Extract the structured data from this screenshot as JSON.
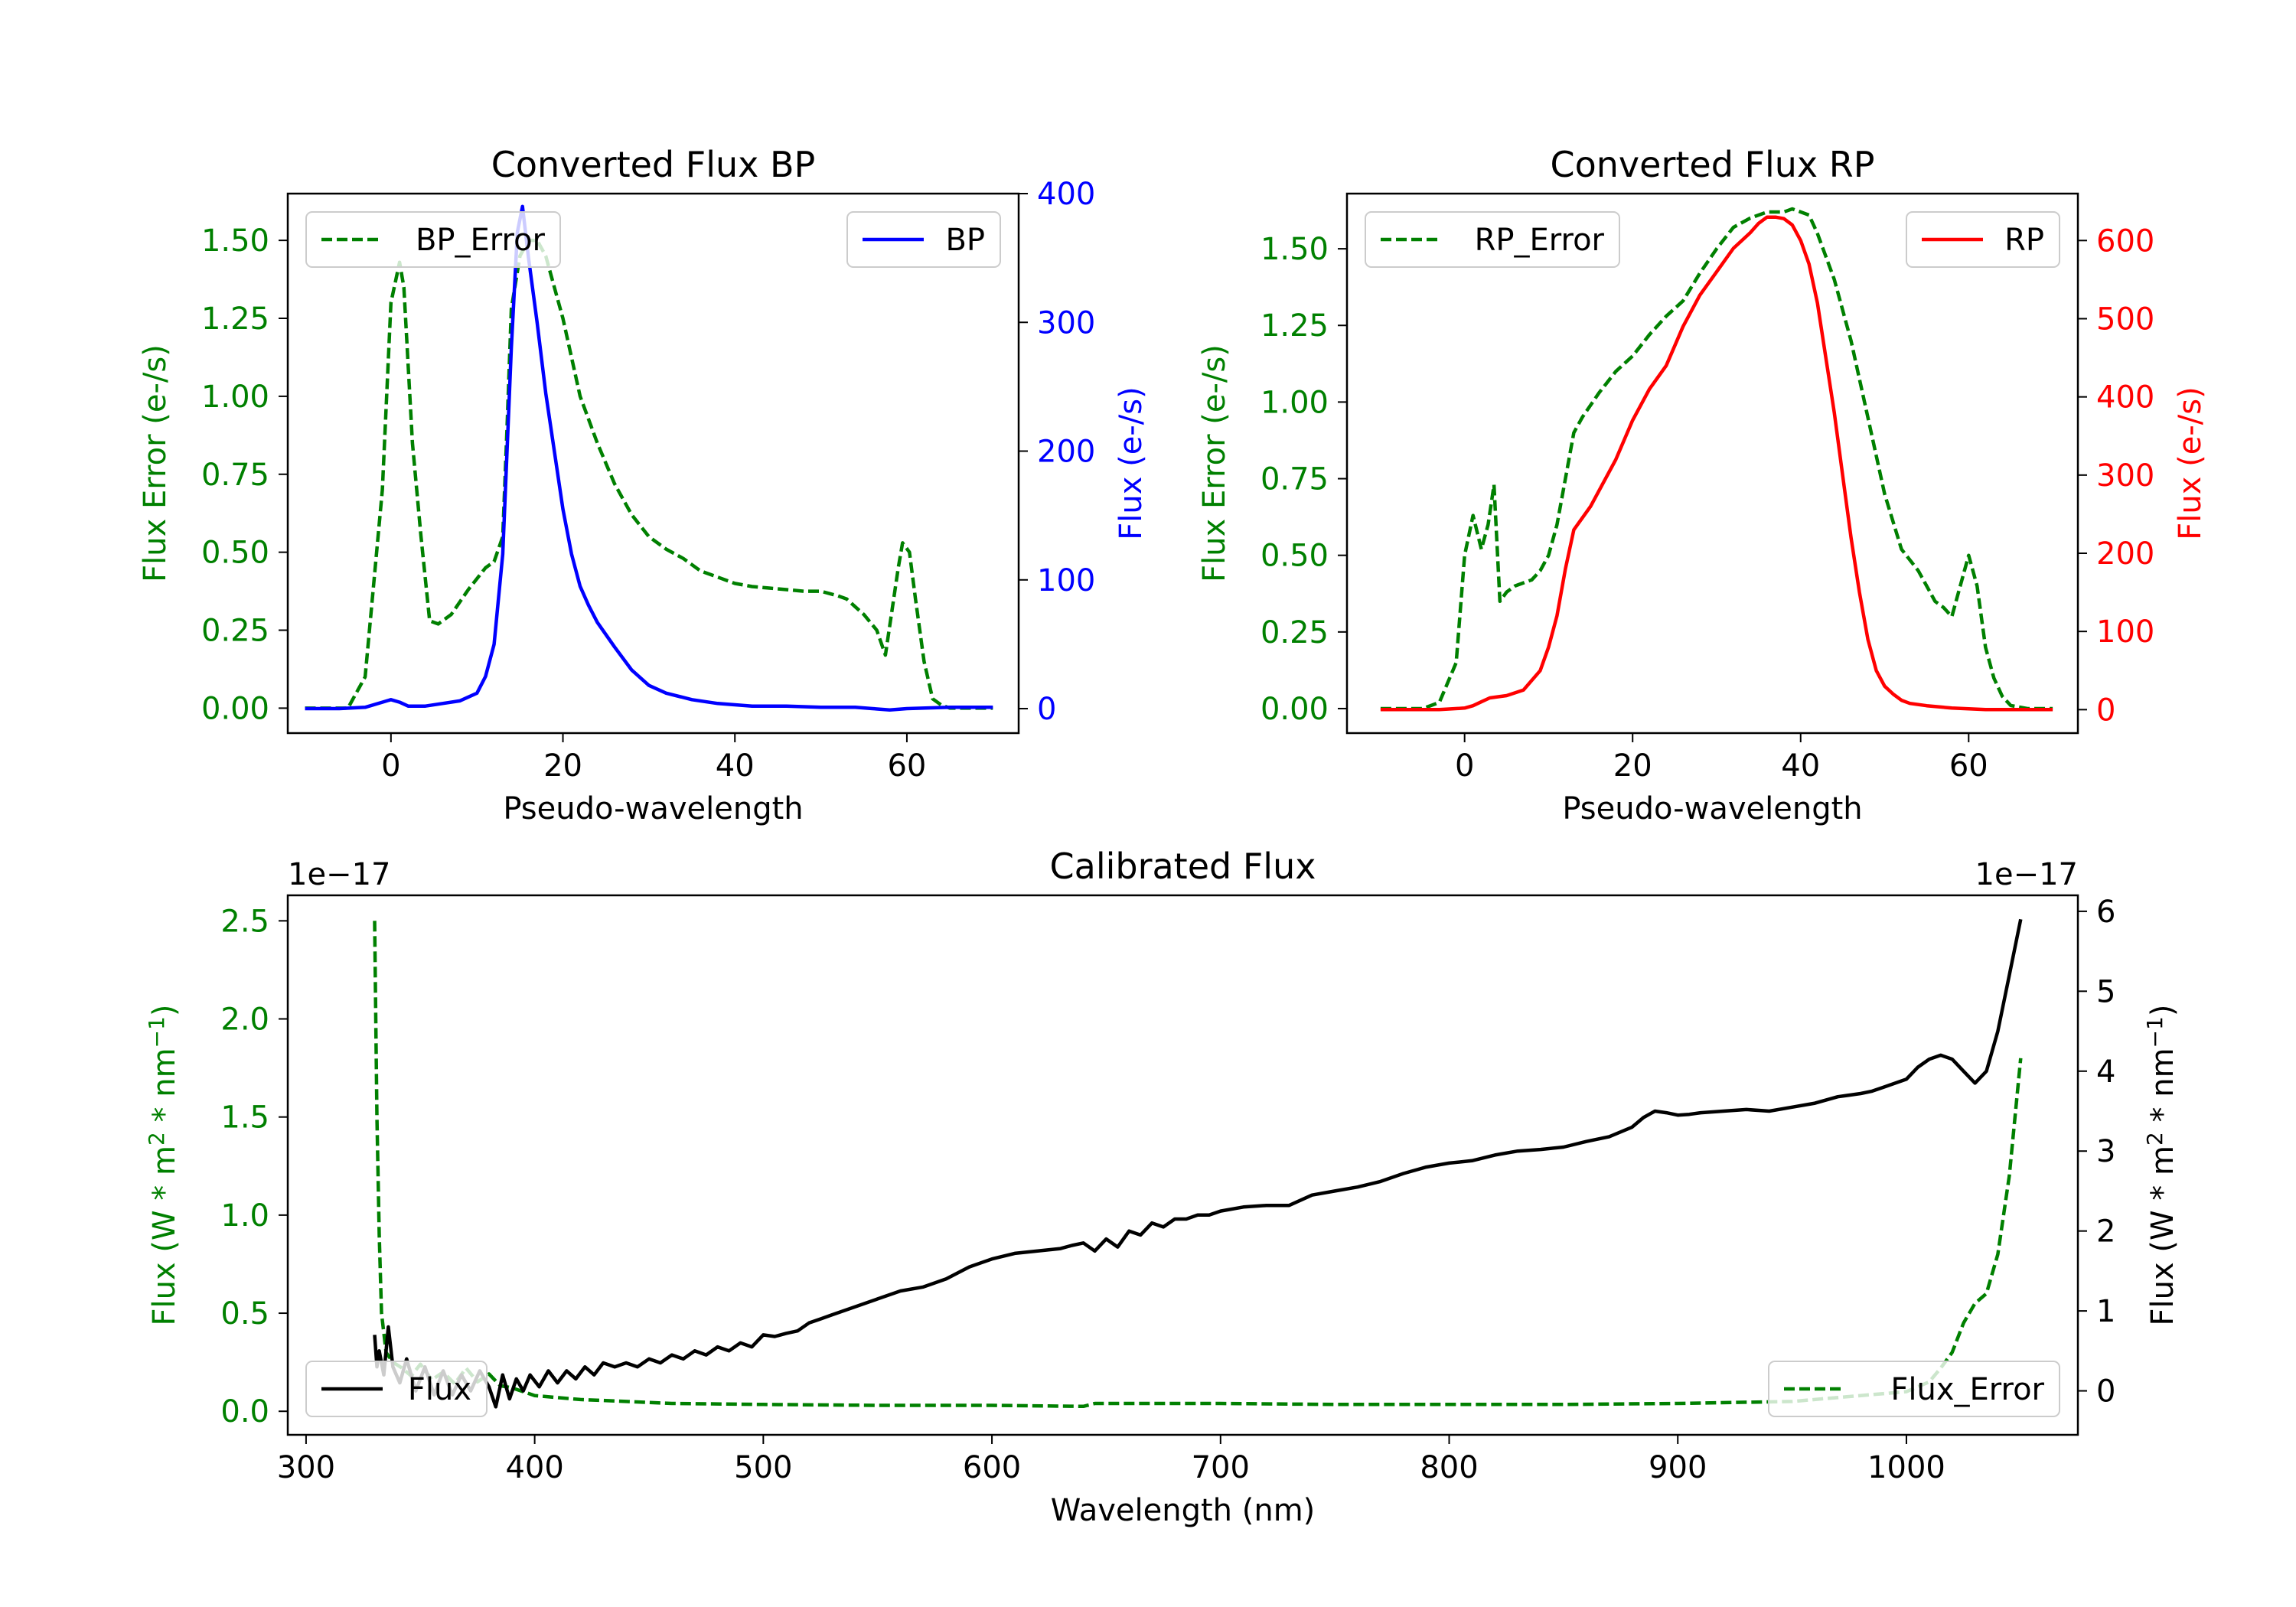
{
  "colors": {
    "error": "#008000",
    "bp": "#0000ff",
    "rp": "#ff0000",
    "flux": "#000000",
    "axis": "#000000"
  },
  "chart_data": [
    {
      "type": "line",
      "title": "Converted Flux BP",
      "xlabel": "Pseudo-wavelength",
      "xlim": [
        -12,
        73
      ],
      "xticks": [
        0,
        20,
        40,
        60
      ],
      "left_axis": {
        "label": "Flux Error (e-/s)",
        "lim": [
          -0.08,
          1.65
        ],
        "ticks": [
          "0.00",
          "0.25",
          "0.50",
          "0.75",
          "1.00",
          "1.25",
          "1.50"
        ]
      },
      "right_axis": {
        "label": "Flux (e-/s)",
        "lim": [
          -19,
          400
        ],
        "ticks": [
          "0",
          "100",
          "200",
          "300",
          "400"
        ]
      },
      "legend_left": "BP_Error",
      "legend_right": "BP",
      "series": [
        {
          "name": "BP_Error",
          "axis": "left",
          "style": "dashed",
          "x": [
            -10,
            -5,
            -3,
            -1,
            0,
            1,
            1.5,
            2.5,
            3.5,
            4.5,
            5.5,
            7,
            9,
            11,
            12,
            13,
            13.5,
            14,
            15,
            16,
            17,
            18,
            19,
            20,
            22,
            24,
            26,
            28,
            30,
            32,
            34,
            36,
            38,
            40,
            42,
            44,
            46,
            48,
            50,
            52,
            53,
            55,
            56.5,
            57.5,
            59,
            59.5,
            60.3,
            61,
            62,
            63,
            64,
            65,
            67,
            70
          ],
          "y": [
            0.0,
            0.0,
            0.1,
            0.7,
            1.3,
            1.43,
            1.35,
            0.85,
            0.55,
            0.28,
            0.27,
            0.3,
            0.38,
            0.45,
            0.47,
            0.55,
            0.9,
            1.28,
            1.45,
            1.5,
            1.5,
            1.45,
            1.35,
            1.25,
            1.0,
            0.85,
            0.72,
            0.62,
            0.55,
            0.51,
            0.48,
            0.44,
            0.42,
            0.4,
            0.39,
            0.385,
            0.38,
            0.375,
            0.375,
            0.36,
            0.35,
            0.3,
            0.25,
            0.17,
            0.45,
            0.53,
            0.5,
            0.35,
            0.15,
            0.03,
            0.01,
            0.0,
            0.0,
            0.0
          ]
        },
        {
          "name": "BP",
          "axis": "right",
          "style": "solid",
          "x": [
            -10,
            -6,
            -3,
            -1,
            0,
            1,
            2,
            4,
            6,
            8,
            10,
            11,
            12,
            13,
            14,
            14.7,
            15.3,
            16,
            17,
            18,
            19,
            20,
            21,
            22,
            23,
            24,
            26,
            28,
            30,
            32,
            35,
            38,
            42,
            46,
            50,
            54,
            56,
            58,
            60,
            65,
            70
          ],
          "y": [
            0,
            0,
            1,
            5,
            7,
            5,
            2,
            2,
            4,
            6,
            12,
            25,
            50,
            120,
            280,
            370,
            390,
            350,
            300,
            245,
            200,
            155,
            120,
            95,
            80,
            67,
            48,
            30,
            18,
            12,
            7,
            4,
            2,
            2,
            1,
            1,
            0,
            -1,
            0,
            1,
            1
          ]
        }
      ]
    },
    {
      "type": "line",
      "title": "Converted Flux RP",
      "xlabel": "Pseudo-wavelength",
      "xlim": [
        -14,
        73
      ],
      "xticks": [
        0,
        20,
        40,
        60
      ],
      "left_axis": {
        "label": "Flux Error (e-/s)",
        "lim": [
          -0.08,
          1.68
        ],
        "ticks": [
          "0.00",
          "0.25",
          "0.50",
          "0.75",
          "1.00",
          "1.25",
          "1.50"
        ]
      },
      "right_axis": {
        "label": "Flux (e-/s)",
        "lim": [
          -30,
          660
        ],
        "ticks": [
          "0",
          "100",
          "200",
          "300",
          "400",
          "500",
          "600"
        ]
      },
      "legend_left": "RP_Error",
      "legend_right": "RP",
      "series": [
        {
          "name": "RP_Error",
          "axis": "left",
          "style": "dashed",
          "x": [
            -10,
            -5,
            -3,
            -1,
            0,
            1,
            2,
            2.8,
            3.5,
            4.2,
            5,
            6,
            8,
            9,
            10,
            11,
            12,
            13,
            14,
            16,
            18,
            20,
            22,
            24,
            26,
            28,
            30,
            32,
            34,
            36,
            38,
            39,
            41,
            42,
            44,
            46,
            48,
            50,
            52,
            54,
            55,
            56,
            57,
            58,
            59,
            60,
            61,
            62,
            63,
            64,
            65,
            67,
            70
          ],
          "y": [
            0.0,
            0.0,
            0.02,
            0.15,
            0.5,
            0.63,
            0.52,
            0.6,
            0.73,
            0.35,
            0.38,
            0.4,
            0.42,
            0.45,
            0.5,
            0.6,
            0.75,
            0.9,
            0.95,
            1.03,
            1.1,
            1.15,
            1.22,
            1.28,
            1.33,
            1.42,
            1.5,
            1.57,
            1.6,
            1.62,
            1.62,
            1.63,
            1.61,
            1.55,
            1.4,
            1.2,
            0.95,
            0.7,
            0.52,
            0.45,
            0.4,
            0.35,
            0.33,
            0.3,
            0.4,
            0.5,
            0.4,
            0.2,
            0.1,
            0.04,
            0.01,
            0.0,
            0.0
          ]
        },
        {
          "name": "RP",
          "axis": "right",
          "style": "solid",
          "x": [
            -10,
            -6,
            -3,
            0,
            1,
            2,
            3,
            5,
            7,
            9,
            10,
            11,
            12,
            13,
            15,
            18,
            20,
            22,
            24,
            26,
            28,
            30,
            32,
            34,
            35,
            36,
            37,
            38,
            39,
            40,
            41,
            42,
            43,
            44,
            45,
            46,
            47,
            48,
            49,
            50,
            51,
            52,
            53,
            55,
            58,
            60,
            62,
            64,
            66,
            70
          ],
          "y": [
            0,
            0,
            0,
            2,
            5,
            10,
            15,
            18,
            25,
            50,
            80,
            120,
            180,
            230,
            260,
            320,
            370,
            410,
            440,
            490,
            530,
            560,
            590,
            610,
            622,
            630,
            630,
            628,
            620,
            600,
            570,
            520,
            450,
            380,
            300,
            220,
            150,
            90,
            50,
            30,
            20,
            12,
            8,
            5,
            2,
            1,
            0,
            0,
            0,
            0
          ]
        }
      ]
    },
    {
      "type": "line",
      "title": "Calibrated Flux",
      "xlabel": "Wavelength (nm)",
      "xlim": [
        292,
        1075
      ],
      "xticks": [
        300,
        400,
        500,
        600,
        700,
        800,
        900,
        1000
      ],
      "left_axis": {
        "label": "Flux (W * m² * nm⁻¹)",
        "label_main": "Flux (W * m",
        "label_mid": " * nm",
        "label_end": ")",
        "sup1": "2",
        "sup2": "−1",
        "offset_text": "1e−17",
        "lim": [
          -0.12,
          2.63
        ],
        "ticks": [
          "0.0",
          "0.5",
          "1.0",
          "1.5",
          "2.0",
          "2.5"
        ]
      },
      "right_axis": {
        "label": "Flux (W * m² * nm⁻¹)",
        "label_main": "Flux (W * m",
        "label_mid": " * nm",
        "label_end": ")",
        "sup1": "2",
        "sup2": "−1",
        "offset_text": "1e−17",
        "lim": [
          -0.55,
          6.2
        ],
        "ticks": [
          "0",
          "1",
          "2",
          "3",
          "4",
          "5",
          "6"
        ]
      },
      "legend_left": "Flux",
      "legend_right": "Flux_Error",
      "series": [
        {
          "name": "Flux_Error",
          "axis": "left",
          "style": "dashed",
          "x": [
            330,
            331,
            332,
            333,
            335,
            338,
            342,
            346,
            350,
            355,
            360,
            365,
            370,
            375,
            380,
            385,
            390,
            395,
            400,
            410,
            420,
            440,
            460,
            500,
            550,
            600,
            640,
            645,
            700,
            750,
            800,
            850,
            900,
            950,
            980,
            1000,
            1010,
            1015,
            1020,
            1025,
            1030,
            1035,
            1040,
            1045,
            1050
          ],
          "y": [
            2.5,
            1.5,
            0.9,
            0.5,
            0.3,
            0.25,
            0.22,
            0.18,
            0.24,
            0.16,
            0.2,
            0.14,
            0.22,
            0.15,
            0.19,
            0.13,
            0.12,
            0.1,
            0.08,
            0.07,
            0.06,
            0.05,
            0.04,
            0.035,
            0.03,
            0.03,
            0.025,
            0.04,
            0.04,
            0.035,
            0.035,
            0.035,
            0.04,
            0.05,
            0.08,
            0.1,
            0.15,
            0.22,
            0.3,
            0.45,
            0.55,
            0.6,
            0.8,
            1.2,
            1.8
          ]
        },
        {
          "name": "Flux",
          "axis": "right",
          "style": "solid",
          "x": [
            330,
            331,
            332,
            334,
            336,
            338,
            341,
            344,
            348,
            352,
            356,
            360,
            364,
            368,
            372,
            376,
            380,
            383,
            386,
            389,
            392,
            395,
            398,
            402,
            406,
            410,
            414,
            418,
            422,
            426,
            430,
            435,
            440,
            445,
            450,
            455,
            460,
            465,
            470,
            475,
            480,
            485,
            490,
            495,
            500,
            505,
            510,
            515,
            520,
            525,
            530,
            540,
            550,
            560,
            570,
            580,
            590,
            600,
            610,
            620,
            630,
            635,
            640,
            645,
            650,
            655,
            660,
            665,
            670,
            675,
            680,
            685,
            690,
            695,
            700,
            710,
            720,
            730,
            740,
            750,
            760,
            770,
            780,
            790,
            800,
            810,
            820,
            830,
            840,
            850,
            860,
            870,
            880,
            885,
            890,
            895,
            900,
            905,
            910,
            920,
            930,
            940,
            950,
            960,
            970,
            975,
            980,
            985,
            990,
            1000,
            1005,
            1010,
            1015,
            1020,
            1025,
            1030,
            1035,
            1040,
            1045,
            1050
          ],
          "y": [
            0.7,
            0.3,
            0.5,
            0.2,
            0.8,
            0.3,
            0.1,
            0.4,
            0.0,
            0.3,
            -0.05,
            0.25,
            -0.05,
            0.2,
            0.0,
            0.25,
            0.05,
            -0.2,
            0.2,
            -0.1,
            0.15,
            0.0,
            0.2,
            0.05,
            0.25,
            0.1,
            0.25,
            0.15,
            0.3,
            0.2,
            0.35,
            0.3,
            0.35,
            0.3,
            0.4,
            0.35,
            0.45,
            0.4,
            0.5,
            0.45,
            0.55,
            0.5,
            0.6,
            0.55,
            0.7,
            0.68,
            0.72,
            0.75,
            0.85,
            0.9,
            0.95,
            1.05,
            1.15,
            1.25,
            1.3,
            1.4,
            1.55,
            1.65,
            1.72,
            1.75,
            1.78,
            1.82,
            1.85,
            1.75,
            1.9,
            1.8,
            2.0,
            1.95,
            2.1,
            2.05,
            2.15,
            2.15,
            2.2,
            2.2,
            2.25,
            2.3,
            2.32,
            2.32,
            2.45,
            2.5,
            2.55,
            2.62,
            2.72,
            2.8,
            2.85,
            2.88,
            2.95,
            3.0,
            3.02,
            3.05,
            3.12,
            3.18,
            3.3,
            3.42,
            3.5,
            3.48,
            3.45,
            3.46,
            3.48,
            3.5,
            3.52,
            3.5,
            3.55,
            3.6,
            3.68,
            3.7,
            3.72,
            3.75,
            3.8,
            3.9,
            4.05,
            4.15,
            4.2,
            4.15,
            4.0,
            3.85,
            4.0,
            4.5,
            5.2,
            5.9
          ]
        }
      ]
    }
  ]
}
